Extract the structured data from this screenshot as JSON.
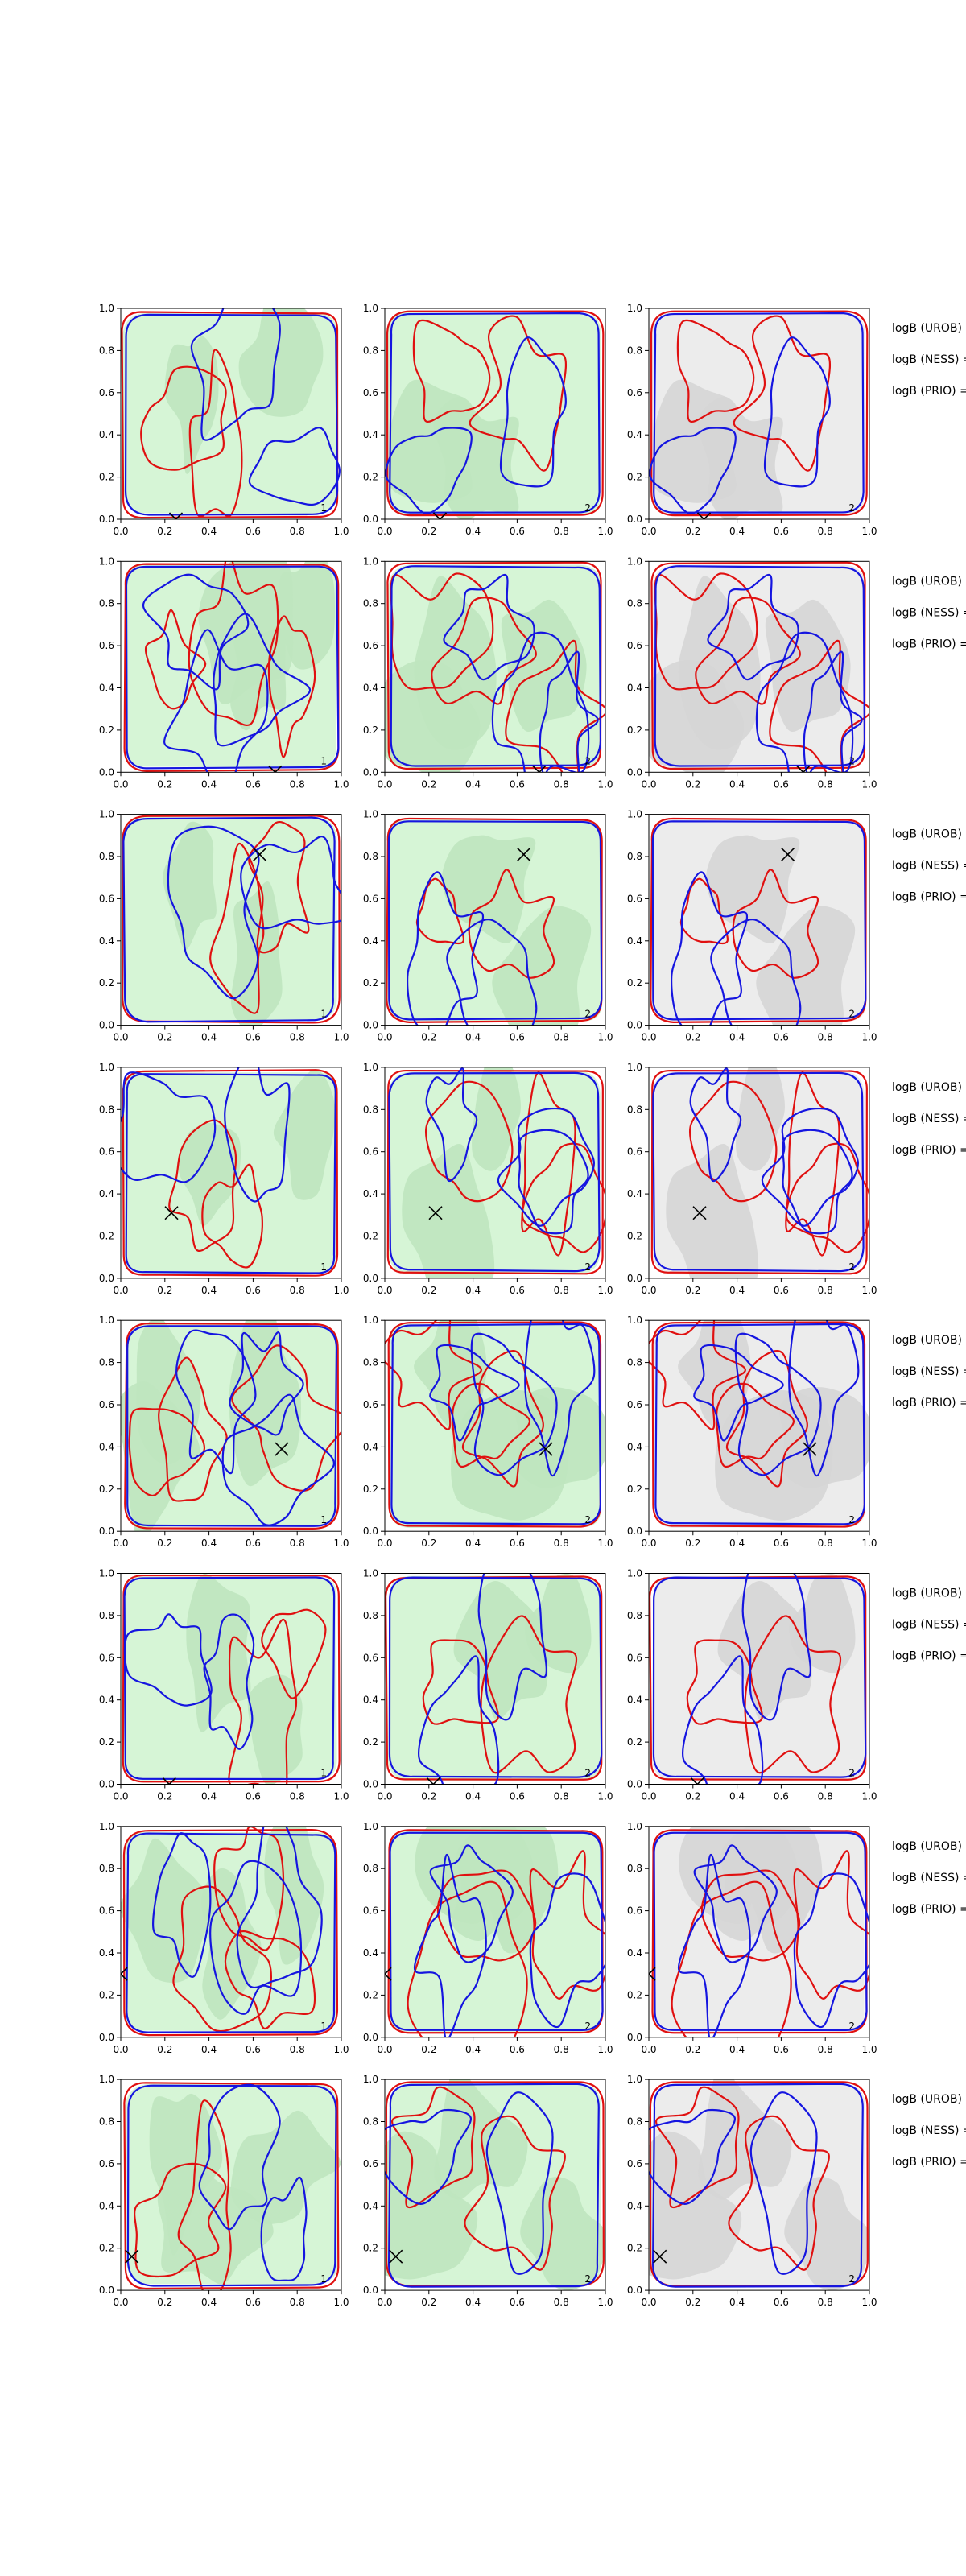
{
  "figure": {
    "colors": {
      "green_background": "#d6f5d6",
      "green_region": "#bfe6bf",
      "gray_background": "#ececec",
      "gray_region": "#d6d6d6",
      "red_contour": "#e01010",
      "blue_contour": "#1515e0",
      "marker": "#000000"
    }
  },
  "chart_data": {
    "type": "contour",
    "layout": {
      "rows": 8,
      "cols": 3
    },
    "xlim": [
      0,
      1
    ],
    "ylim": [
      0,
      1
    ],
    "xticks": [
      "0.0",
      "0.2",
      "0.4",
      "0.6",
      "0.8",
      "1.0"
    ],
    "yticks": [
      "0.0",
      "0.2",
      "0.4",
      "0.6",
      "0.8",
      "1.0"
    ],
    "column_panel_labels": [
      "1",
      "2",
      "2"
    ],
    "row_annotations": [
      "logB (UROB) =",
      "logB (NESS) =",
      "logB (PRIO) ="
    ],
    "rows": [
      {
        "marker": [
          0.25,
          0.0
        ]
      },
      {
        "marker": [
          0.7,
          0.0
        ]
      },
      {
        "marker": [
          0.63,
          0.81
        ]
      },
      {
        "marker": [
          0.23,
          0.31
        ]
      },
      {
        "marker": [
          0.73,
          0.39
        ]
      },
      {
        "marker": [
          0.22,
          0.0
        ]
      },
      {
        "marker": [
          0.0,
          0.3
        ]
      },
      {
        "marker": [
          0.05,
          0.16
        ]
      }
    ]
  }
}
